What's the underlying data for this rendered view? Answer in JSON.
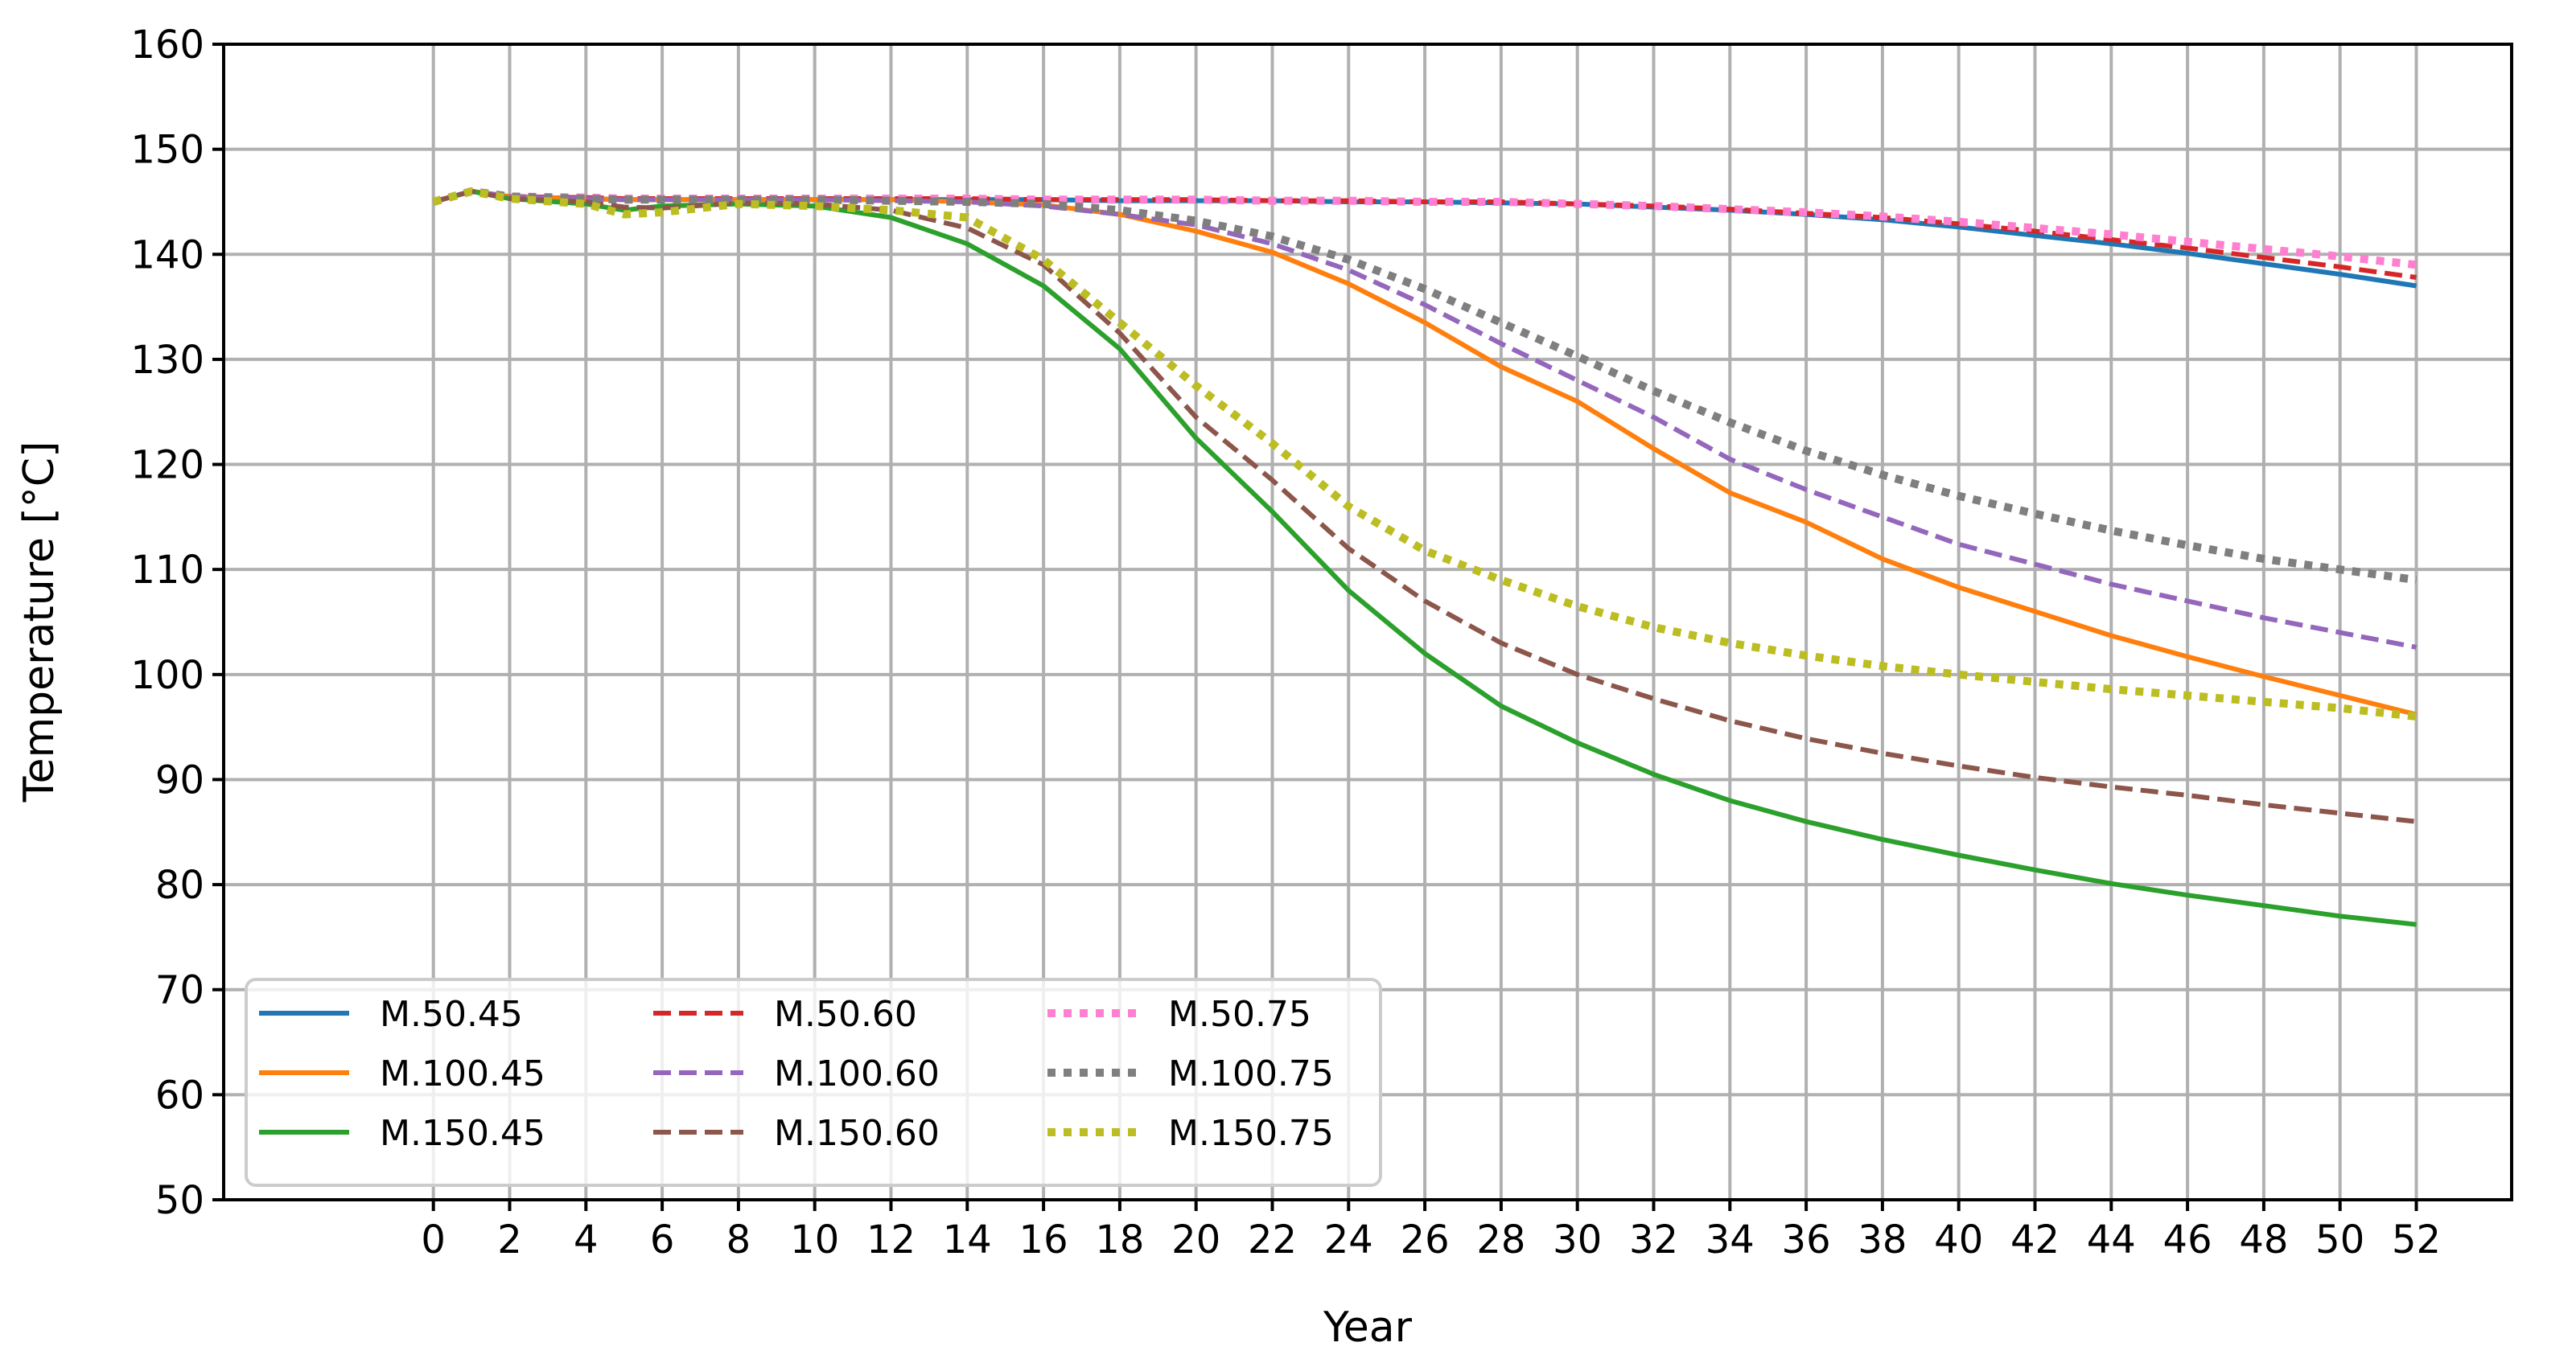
{
  "chart_data": {
    "type": "line",
    "title": "",
    "xlabel": "Year",
    "ylabel": "Temperature [°C]",
    "xlim": [
      -5.5,
      54.5
    ],
    "ylim": [
      50,
      160
    ],
    "xticks": [
      0,
      2,
      4,
      6,
      8,
      10,
      12,
      14,
      16,
      18,
      20,
      22,
      24,
      26,
      28,
      30,
      32,
      34,
      36,
      38,
      40,
      42,
      44,
      46,
      48,
      50,
      52
    ],
    "yticks": [
      50,
      60,
      70,
      80,
      90,
      100,
      110,
      120,
      130,
      140,
      150,
      160
    ],
    "grid": true,
    "legend": {
      "placement": "lower-left",
      "columns": 3
    },
    "x": [
      0,
      1,
      2,
      4,
      5,
      6,
      8,
      10,
      12,
      14,
      16,
      18,
      20,
      22,
      24,
      26,
      28,
      30,
      32,
      34,
      36,
      38,
      40,
      42,
      44,
      46,
      48,
      50,
      52
    ],
    "series": [
      {
        "name": "M.50.45",
        "color": "#1f77b4",
        "dash": "solid",
        "values": [
          145,
          146,
          145.5,
          145.3,
          145.2,
          145.2,
          145.2,
          145.2,
          145.2,
          145.2,
          145.2,
          145.1,
          145.1,
          145.1,
          145,
          145,
          144.9,
          144.8,
          144.5,
          144.2,
          143.8,
          143.3,
          142.6,
          141.8,
          141,
          140.1,
          139.1,
          138.1,
          137
        ]
      },
      {
        "name": "M.100.45",
        "color": "#ff7f0e",
        "dash": "solid",
        "values": [
          145,
          146,
          145.5,
          145.3,
          145.2,
          145.2,
          145.2,
          145.2,
          145.2,
          145,
          144.7,
          143.8,
          142.2,
          140.2,
          137.2,
          133.5,
          129.3,
          126,
          121.5,
          117.3,
          114.5,
          111,
          108.3,
          106,
          103.7,
          101.7,
          99.8,
          98,
          96.2
        ]
      },
      {
        "name": "M.150.45",
        "color": "#2ca02c",
        "dash": "solid",
        "values": [
          145,
          146,
          145.3,
          144.8,
          144.2,
          144.6,
          144.8,
          144.6,
          143.5,
          141,
          137,
          131,
          122.5,
          115.5,
          108,
          102,
          97,
          93.5,
          90.5,
          88,
          86,
          84.3,
          82.8,
          81.4,
          80.1,
          79,
          78,
          77,
          76.2
        ]
      },
      {
        "name": "M.50.60",
        "color": "#d62728",
        "dash": "dashed",
        "values": [
          145,
          146,
          145.5,
          145.4,
          145.3,
          145.3,
          145.3,
          145.3,
          145.3,
          145.3,
          145.2,
          145.2,
          145.2,
          145.1,
          145.1,
          145,
          145,
          144.8,
          144.6,
          144.3,
          143.9,
          143.5,
          142.9,
          142.2,
          141.4,
          140.6,
          139.7,
          138.8,
          137.8
        ]
      },
      {
        "name": "M.100.60",
        "color": "#9467bd",
        "dash": "dashed",
        "values": [
          145,
          146,
          145.5,
          145.3,
          145.2,
          145.2,
          145.2,
          145.2,
          145.1,
          145,
          144.6,
          143.8,
          142.8,
          141,
          138.5,
          135.2,
          131.5,
          128,
          124.5,
          120.5,
          117.6,
          115,
          112.4,
          110.5,
          108.6,
          107,
          105.4,
          104,
          102.6
        ]
      },
      {
        "name": "M.150.60",
        "color": "#8c564b",
        "dash": "dashed",
        "values": [
          145,
          146,
          145.3,
          145,
          144.5,
          144.4,
          144.9,
          144.8,
          144.2,
          142.5,
          139,
          132.5,
          124.5,
          118.5,
          112,
          107,
          103,
          100,
          97.7,
          95.6,
          93.9,
          92.5,
          91.3,
          90.2,
          89.3,
          88.5,
          87.6,
          86.8,
          86
        ]
      },
      {
        "name": "M.50.75",
        "color": "#ff7fd0",
        "dash": "dotted",
        "values": [
          145,
          146,
          145.5,
          145.4,
          145.3,
          145.3,
          145.3,
          145.3,
          145.3,
          145.3,
          145.2,
          145.2,
          145.2,
          145.1,
          145.1,
          145,
          145,
          144.8,
          144.6,
          144.3,
          144,
          143.6,
          143.1,
          142.5,
          141.9,
          141.2,
          140.5,
          139.8,
          139
        ]
      },
      {
        "name": "M.100.75",
        "color": "#7f7f7f",
        "dash": "dotted",
        "values": [
          145,
          146,
          145.5,
          145.3,
          145.2,
          145.2,
          145.2,
          145.2,
          145.1,
          145,
          144.8,
          144.2,
          143.2,
          141.7,
          139.5,
          136.7,
          133.5,
          130.3,
          127,
          124,
          121.3,
          119,
          117,
          115.3,
          113.7,
          112.3,
          111,
          110,
          109
        ]
      },
      {
        "name": "M.150.75",
        "color": "#bcbd22",
        "dash": "dotted",
        "values": [
          145,
          146,
          145.3,
          144.8,
          143.8,
          144,
          144.8,
          144.6,
          144.2,
          143.5,
          139.5,
          133.5,
          127.5,
          122,
          116,
          111.8,
          109,
          106.5,
          104.5,
          103,
          101.8,
          100.8,
          100,
          99.3,
          98.6,
          98,
          97.4,
          96.8,
          96
        ]
      }
    ]
  }
}
